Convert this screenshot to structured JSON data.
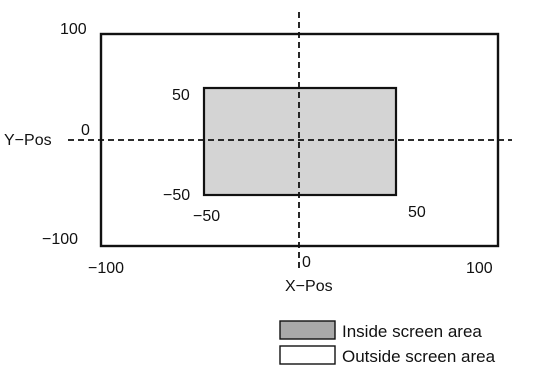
{
  "diagram": {
    "labels": {
      "outer_top_left": "100",
      "outer_left_mid": "0",
      "y_axis_name": "Y−Pos",
      "outer_bottom_left": "−100",
      "inner_top_left": "50",
      "inner_bottom_left": "−50",
      "inner_left_bottom": "−50",
      "inner_right_bottom": "50",
      "x_min": "−100",
      "x_zero": "0",
      "x_max": "100",
      "x_axis_name": "X−Pos"
    },
    "legend": {
      "inside": "Inside screen area",
      "outside": "Outside screen area"
    },
    "colors": {
      "inside_fill": "#d4d4d4",
      "inside_swatch": "#a9a9a9",
      "line": "#111111"
    }
  }
}
